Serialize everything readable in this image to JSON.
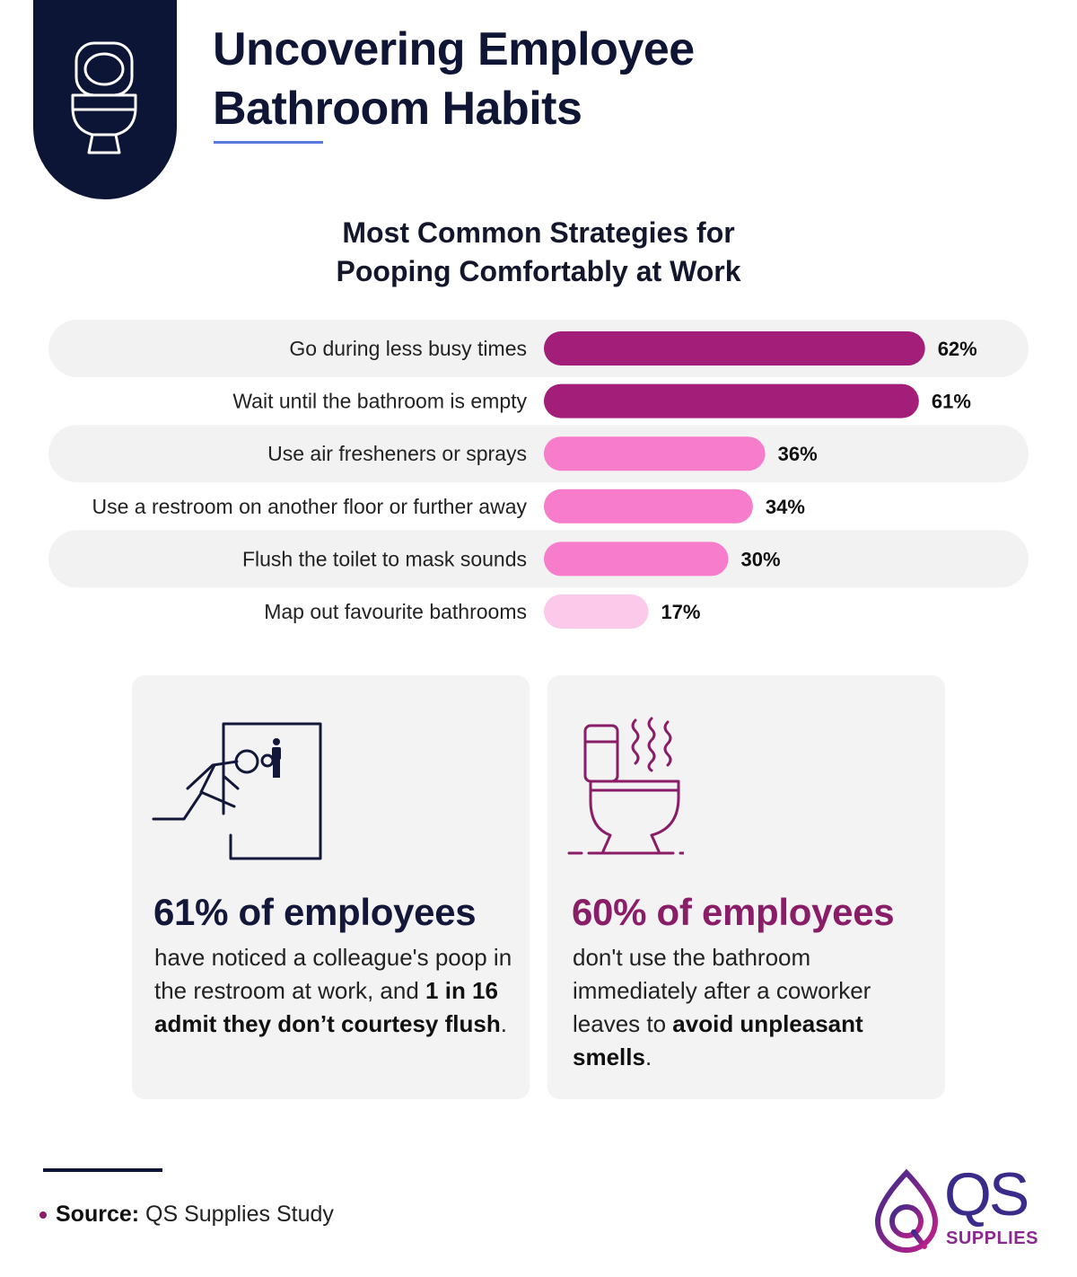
{
  "header": {
    "title_line1": "Uncovering Employee",
    "title_line2": "Bathroom Habits",
    "icon": "toilet-icon"
  },
  "chart_data": {
    "type": "bar",
    "orientation": "horizontal",
    "title_line1": "Most Common Strategies for",
    "title_line2": "Pooping Comfortably at Work",
    "categories": [
      "Go during less busy times",
      "Wait until the bathroom is empty",
      "Use air fresheners or sprays",
      "Use a restroom on another floor or further away",
      "Flush the toilet to mask sounds",
      "Map out favourite bathrooms"
    ],
    "values": [
      62,
      61,
      36,
      34,
      30,
      17
    ],
    "value_labels": [
      "62%",
      "61%",
      "36%",
      "34%",
      "30%",
      "17%"
    ],
    "unit": "%",
    "bar_colors": [
      "#a21e78",
      "#a21e78",
      "#f77ccb",
      "#f77ccb",
      "#f77ccb",
      "#fcc9ea"
    ],
    "row_shading": "alternating-light-gray",
    "grid": false
  },
  "stats": [
    {
      "headline": "61% of employees",
      "text_plain_1": "have noticed a colleague's poop in the restroom at work, and ",
      "text_bold_1": "1 in 16 admit they don’t courtesy flush",
      "text_plain_2": ".",
      "icon": "person-rushing-to-restroom-icon",
      "color": "#13183a"
    },
    {
      "headline": "60% of employees",
      "text_plain_1": "don't use the bathroom immediately after a coworker leaves to ",
      "text_bold_1": "avoid unpleasant smells",
      "text_plain_2": ".",
      "icon": "smelly-toilet-icon",
      "color": "#8a1d67"
    }
  ],
  "footer": {
    "source_label": "Source:",
    "source_text": " QS Supplies Study",
    "logo_text": "QS",
    "logo_sub": "SUPPLIES"
  },
  "colors": {
    "navy": "#0d1537",
    "accent_blue": "#5b7be0",
    "magenta_dark": "#a21e78",
    "pink": "#f77ccb",
    "pink_light": "#fcc9ea",
    "plum": "#8a1d67"
  }
}
